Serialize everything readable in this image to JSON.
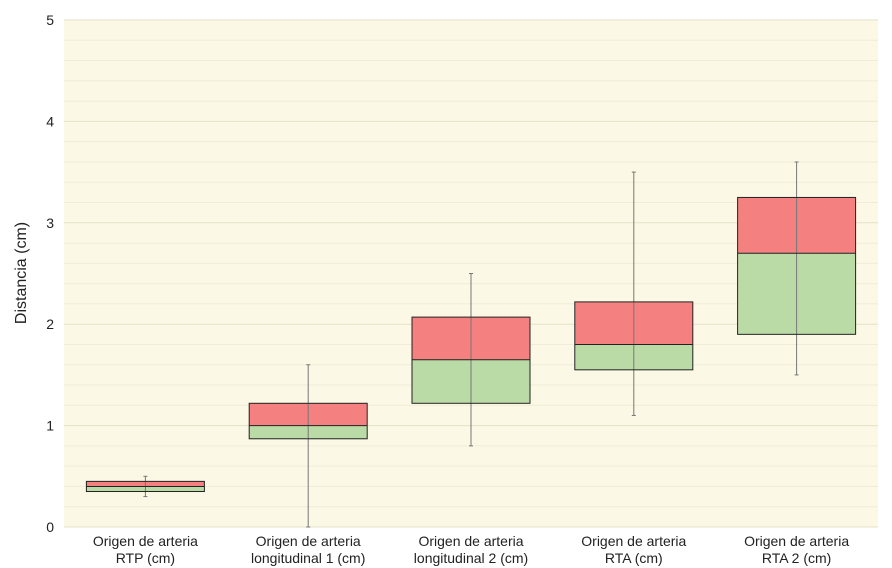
{
  "chart_data": {
    "type": "box",
    "title": "",
    "xlabel": "",
    "ylabel": "Distancia (cm)",
    "ylim": [
      0,
      5
    ],
    "y_ticks": [
      0,
      1,
      2,
      3,
      4,
      5
    ],
    "grid": true,
    "legend": "none",
    "colors": {
      "plot_background": "#fbf8e6",
      "grid_major": "#e6e0c6",
      "grid_minor": "#f1ecd6",
      "upper_box": "#f48080",
      "lower_box": "#bbdba6",
      "stroke": "#222222",
      "whisker": "#777777"
    },
    "categories": [
      [
        "Origen de arteria",
        "RTP (cm)"
      ],
      [
        "Origen de arteria",
        "longitudinal 1 (cm)"
      ],
      [
        "Origen de arteria",
        "longitudinal 2 (cm)"
      ],
      [
        "Origen de arteria",
        "RTA (cm)"
      ],
      [
        "Origen de arteria",
        "RTA 2 (cm)"
      ]
    ],
    "boxes": [
      {
        "min": 0.3,
        "q1": 0.35,
        "median": 0.4,
        "q3": 0.45,
        "max": 0.5
      },
      {
        "min": 0.0,
        "q1": 0.87,
        "median": 1.0,
        "q3": 1.22,
        "max": 1.6
      },
      {
        "min": 0.8,
        "q1": 1.22,
        "median": 1.65,
        "q3": 2.07,
        "max": 2.5
      },
      {
        "min": 1.1,
        "q1": 1.55,
        "median": 1.8,
        "q3": 2.22,
        "max": 3.5
      },
      {
        "min": 1.5,
        "q1": 1.9,
        "median": 2.7,
        "q3": 3.25,
        "max": 3.6
      }
    ]
  }
}
